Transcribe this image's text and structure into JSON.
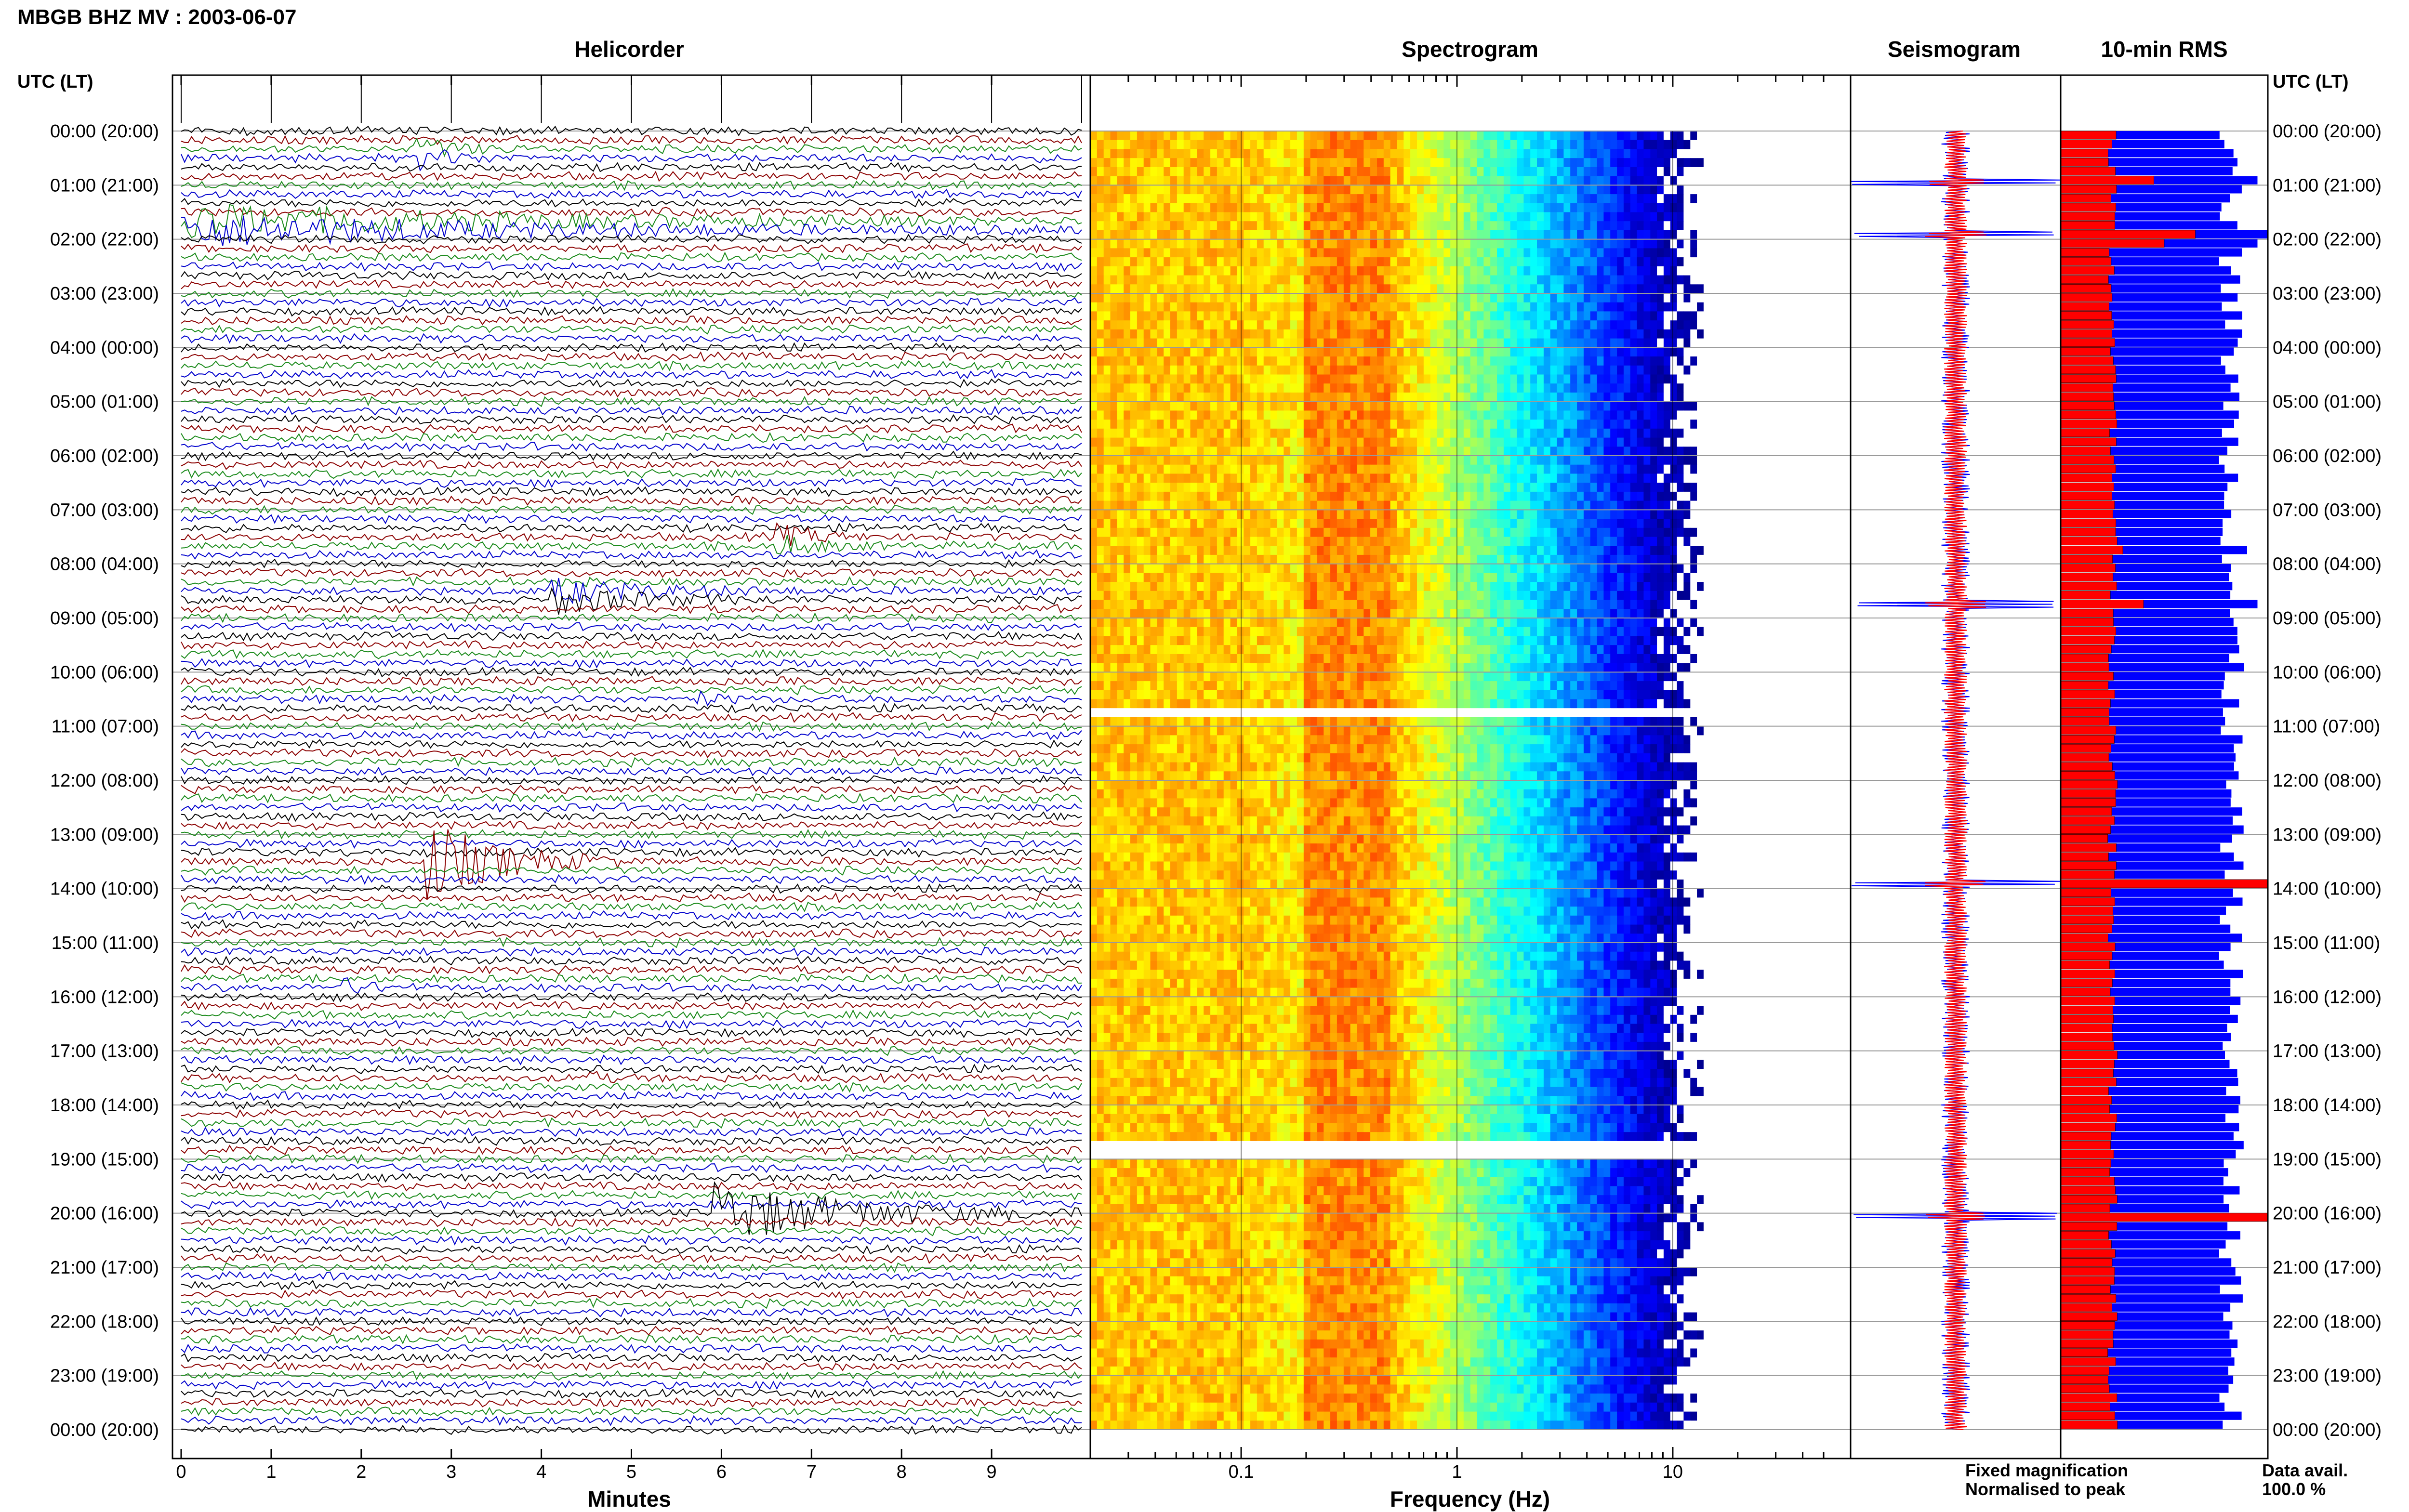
{
  "header": {
    "title": "MBGB BHZ MV : 2003-06-07"
  },
  "panels": {
    "helicorder": {
      "title": "Helicorder",
      "xlabel": "Minutes"
    },
    "spectrogram": {
      "title": "Spectrogram",
      "xlabel": "Frequency (Hz)"
    },
    "seismogram": {
      "title": "Seismogram"
    },
    "rms": {
      "title": "10-min RMS"
    }
  },
  "time_axis": {
    "left_header": "UTC (LT)",
    "right_header": "UTC (LT)"
  },
  "legend": {
    "fixed_label": "Fixed magnification",
    "fixed_color": "#1010ee",
    "normalised_label": "Normalised to peak",
    "normalised_color": "#ee1010"
  },
  "availability": {
    "label": "Data avail.",
    "value": "100.0 %"
  },
  "colors": {
    "trace_cycle": [
      "#000000",
      "#8b0000",
      "#1a8a1a",
      "#0000cc"
    ],
    "rms_fixed": "#0000ff",
    "rms_normalised": "#ff0000",
    "spectrogram_scale": [
      "#00008f",
      "#0000ff",
      "#0080ff",
      "#00ffff",
      "#80ff80",
      "#ffff00",
      "#ff8000",
      "#ff0000",
      "#800000"
    ]
  },
  "chart_data": [
    {
      "type": "line",
      "panel": "helicorder",
      "title": "Helicorder",
      "xlabel": "Minutes",
      "ylabel": "UTC (LT)",
      "xlim": [
        0,
        10
      ],
      "x_ticks": [
        "0",
        "1",
        "2",
        "3",
        "4",
        "5",
        "6",
        "7",
        "8",
        "9"
      ],
      "y_ticks": [
        "00:00 (20:00)",
        "01:00 (21:00)",
        "02:00 (22:00)",
        "03:00 (23:00)",
        "04:00 (00:00)",
        "05:00 (01:00)",
        "06:00 (02:00)",
        "07:00 (03:00)",
        "08:00 (04:00)",
        "09:00 (05:00)",
        "10:00 (06:00)",
        "11:00 (07:00)",
        "12:00 (08:00)",
        "13:00 (09:00)",
        "14:00 (10:00)",
        "15:00 (11:00)",
        "16:00 (12:00)",
        "17:00 (13:00)",
        "18:00 (14:00)",
        "19:00 (15:00)",
        "20:00 (16:00)",
        "21:00 (17:00)",
        "22:00 (18:00)",
        "23:00 (19:00)",
        "00:00 (20:00)"
      ],
      "trace_interval_min": 10,
      "trace_count": 144,
      "events": [
        {
          "hour": 0.45,
          "minute": 2.6,
          "duration_min": 1.3,
          "peak_amp": 1.2
        },
        {
          "hour": 1.75,
          "minute": 0.0,
          "duration_min": 10.0,
          "peak_amp": 1.8
        },
        {
          "hour": 7.55,
          "minute": 6.6,
          "duration_min": 1.2,
          "peak_amp": 1.3
        },
        {
          "hour": 8.55,
          "minute": 4.1,
          "duration_min": 2.8,
          "peak_amp": 1.5
        },
        {
          "hour": 10.5,
          "minute": 5.7,
          "duration_min": 0.6,
          "peak_amp": 0.9
        },
        {
          "hour": 13.5,
          "minute": 2.7,
          "duration_min": 2.2,
          "peak_amp": 5.0
        },
        {
          "hour": 15.85,
          "minute": 1.8,
          "duration_min": 0.8,
          "peak_amp": 0.8
        },
        {
          "hour": 17.5,
          "minute": 4.5,
          "duration_min": 0.4,
          "peak_amp": 0.9
        },
        {
          "hour": 20.0,
          "minute": 5.9,
          "duration_min": 4.1,
          "peak_amp": 3.6
        }
      ]
    },
    {
      "type": "heatmap",
      "panel": "spectrogram",
      "title": "Spectrogram",
      "xlabel": "Frequency (Hz)",
      "x_scale": "log",
      "xlim": [
        0.02,
        50
      ],
      "x_ticks": [
        "0.1",
        "1",
        "10"
      ],
      "y_range_hours": [
        0,
        24
      ],
      "peak_band_hz": [
        0.2,
        0.5
      ],
      "data_gaps_hours": [
        10.7,
        18.75
      ]
    },
    {
      "type": "line",
      "panel": "seismogram",
      "title": "Seismogram",
      "series": [
        {
          "name": "Fixed magnification"
        },
        {
          "name": "Normalised to peak"
        }
      ],
      "events_hours": [
        0.95,
        1.9,
        8.75,
        13.9,
        20.05
      ]
    },
    {
      "type": "bar",
      "panel": "rms",
      "title": "10-min RMS",
      "orientation": "horizontal",
      "interval_min": 10,
      "series": [
        {
          "name": "Fixed magnification",
          "typical_level": 0.8
        },
        {
          "name": "Normalised to peak",
          "typical_level": 0.25
        }
      ],
      "spikes": [
        {
          "hour": 0.95,
          "fixed": 0.95,
          "normalised": 0.45
        },
        {
          "hour": 1.85,
          "fixed": 1.0,
          "normalised": 0.65
        },
        {
          "hour": 2.0,
          "fixed": 0.95,
          "normalised": 0.5
        },
        {
          "hour": 7.75,
          "fixed": 0.9,
          "normalised": 0.3
        },
        {
          "hour": 8.75,
          "fixed": 0.95,
          "normalised": 0.4
        },
        {
          "hour": 13.95,
          "fixed": 1.0,
          "normalised": 1.0
        },
        {
          "hour": 20.05,
          "fixed": 1.0,
          "normalised": 1.0
        }
      ]
    }
  ]
}
